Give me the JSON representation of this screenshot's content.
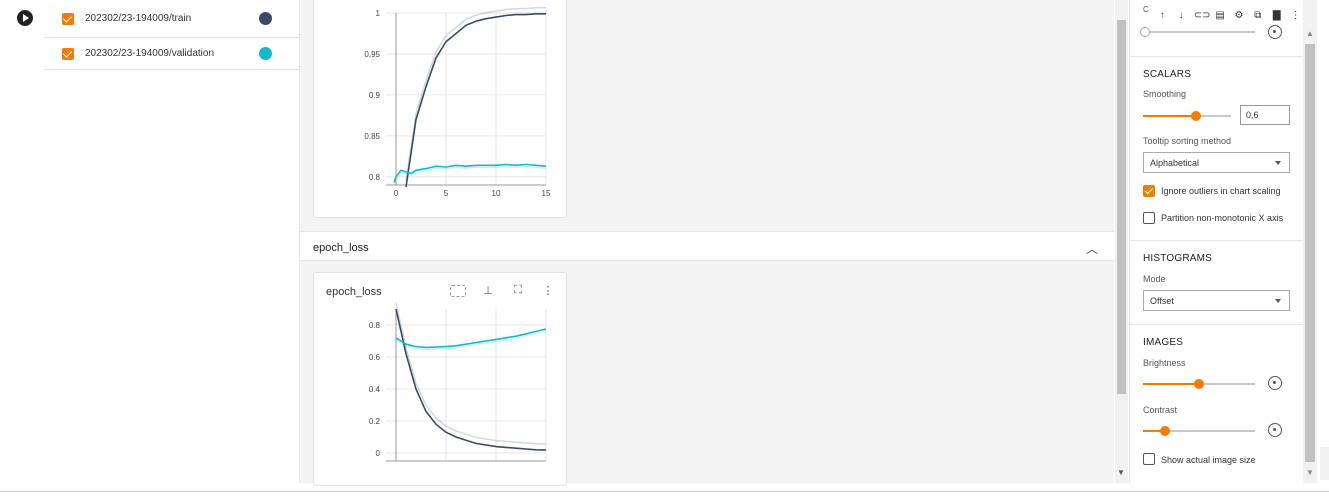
{
  "runs": [
    {
      "label": "202302/23-194009/train",
      "color": "#3a4a66"
    },
    {
      "label": "202302/23-194009/validation",
      "color": "#17b8c9"
    }
  ],
  "main": {
    "group_title": "epoch_loss",
    "card2_title": "epoch_loss"
  },
  "settings": {
    "top_cut_label": "C",
    "scalars_title": "SCALARS",
    "smoothing_label": "Smoothing",
    "smoothing_value": "0,6",
    "smoothing_level": 0.6,
    "tooltip_label": "Tooltip sorting method",
    "tooltip_value": "Alphabetical",
    "ignore_outliers_label": "Ignore outliers in chart scaling",
    "ignore_outliers_checked": true,
    "partition_label": "Partition non-monotonic X axis",
    "partition_checked": false,
    "histograms_title": "HISTOGRAMS",
    "mode_label": "Mode",
    "mode_value": "Offset",
    "images_title": "IMAGES",
    "brightness_label": "Brightness",
    "contrast_label": "Contrast",
    "show_actual_label": "Show actual image size",
    "show_actual_checked": false
  },
  "chart_data": [
    {
      "type": "line",
      "title": "",
      "x": [
        0,
        1,
        2,
        3,
        4,
        5,
        6,
        7,
        8,
        9,
        10,
        11,
        12,
        13,
        14,
        15
      ],
      "xticks": [
        "0",
        "5",
        "10",
        "15"
      ],
      "yticks": [
        "0.8",
        "0.85",
        "0.9",
        "0.95",
        "1"
      ],
      "ylim": [
        0.79,
        1.0
      ],
      "xlim": [
        -1,
        15
      ],
      "series": [
        {
          "name": "202302/23-194009/train",
          "color": "#3a4a66",
          "values": [
            null,
            0.78,
            0.87,
            0.91,
            0.945,
            0.965,
            0.975,
            0.985,
            0.99,
            0.993,
            0.995,
            0.997,
            0.998,
            0.998,
            0.999,
            0.999
          ]
        },
        {
          "name": "202302/23-194009/validation",
          "color": "#17b8c9",
          "x": [
            -0.2,
            0,
            0.5,
            1,
            1.5,
            2,
            3,
            4,
            5,
            6,
            7,
            8,
            9,
            10,
            11,
            12,
            13,
            14,
            15
          ],
          "values": [
            0.793,
            0.8,
            0.808,
            0.806,
            0.804,
            0.808,
            0.81,
            0.813,
            0.812,
            0.814,
            0.813,
            0.814,
            0.814,
            0.814,
            0.815,
            0.814,
            0.815,
            0.814,
            0.813
          ]
        }
      ]
    },
    {
      "type": "line",
      "title": "epoch_loss",
      "x": [
        0,
        1,
        2,
        3,
        4,
        5,
        6,
        7,
        8,
        9,
        10,
        11,
        12,
        13,
        14,
        15
      ],
      "yticks": [
        "0",
        "0.2",
        "0.4",
        "0.6",
        "0.8"
      ],
      "ylim": [
        -0.05,
        0.9
      ],
      "xlim": [
        -1,
        15
      ],
      "series": [
        {
          "name": "202302/23-194009/train",
          "color": "#3a4a66",
          "values": [
            0.9,
            0.62,
            0.4,
            0.26,
            0.18,
            0.13,
            0.1,
            0.08,
            0.06,
            0.05,
            0.04,
            0.035,
            0.03,
            0.025,
            0.02,
            0.018
          ]
        },
        {
          "name": "202302/23-194009/validation",
          "color": "#17b8c9",
          "values": [
            0.72,
            0.68,
            0.665,
            0.66,
            0.662,
            0.665,
            0.67,
            0.68,
            0.69,
            0.7,
            0.71,
            0.72,
            0.73,
            0.745,
            0.76,
            0.775
          ]
        }
      ]
    }
  ]
}
